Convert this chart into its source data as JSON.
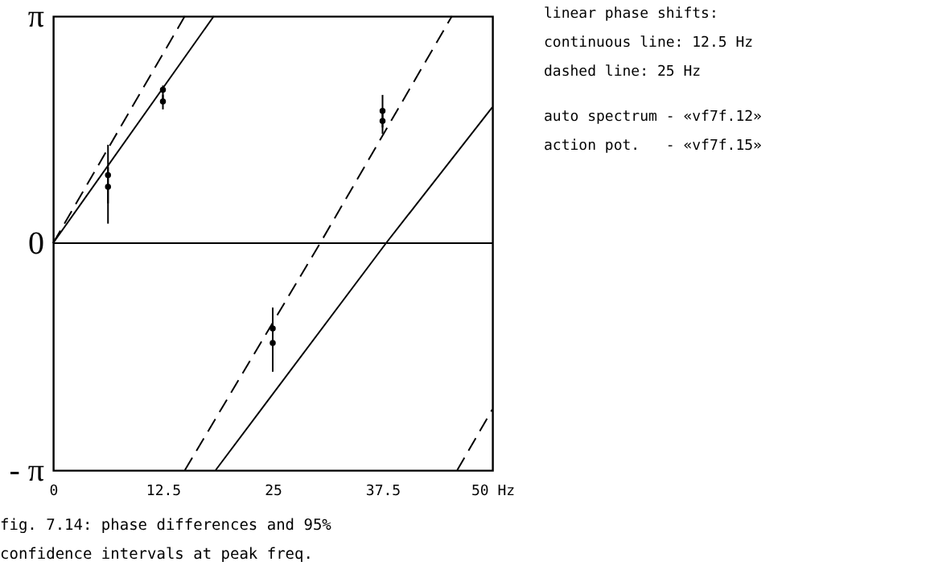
{
  "chart_data": {
    "type": "line",
    "title": "fig. 7.14: phase differences and 95% confidence intervals at peak freq.",
    "annotations": [
      "linear phase shifts:",
      "continuous line: 12.5 Hz",
      "dashed line: 25 Hz",
      "auto spectrum - «vf7f.12»",
      "action pot.   - «vf7f.15»"
    ],
    "xlim": [
      0,
      50
    ],
    "xticks": [
      0,
      12.5,
      25,
      37.5,
      {
        "value": 50,
        "label": "50 Hz"
      }
    ],
    "ylim": [
      -3.14,
      3.14
    ],
    "yticks": [
      {
        "value": -3.14,
        "label": "- π"
      },
      {
        "value": 0,
        "label": "0"
      },
      {
        "value": 3.14,
        "label": "π"
      }
    ],
    "grid": false,
    "ref_lines": [
      {
        "axis": "y",
        "value": 0,
        "color": "#000000"
      }
    ],
    "series": [
      {
        "color": "#000000",
        "line_style": "solid",
        "x": [
          0,
          18.3
        ],
        "values": [
          0,
          3.14
        ]
      },
      {
        "color": "#000000",
        "line_style": "solid",
        "x": [
          18.5,
          37.9,
          50
        ],
        "values": [
          -3.14,
          0,
          1.88
        ]
      },
      {
        "color": "#000000",
        "line_style": "dashed",
        "x": [
          0,
          15.0
        ],
        "values": [
          0,
          3.14
        ]
      },
      {
        "color": "#000000",
        "line_style": "dashed",
        "x": [
          15.0,
          30.4,
          45.4
        ],
        "values": [
          -3.14,
          0,
          3.14
        ]
      },
      {
        "color": "#000000",
        "line_style": "dashed",
        "x": [
          46.0,
          50
        ],
        "values": [
          -3.14,
          -2.3
        ]
      },
      {
        "type": "scatter",
        "color": "#000000",
        "marker": "circle",
        "x": [
          6.25,
          12.5,
          25,
          37.5
        ],
        "values": [
          0.94,
          2.12,
          -1.18,
          1.83
        ],
        "errors": [
          [
            0.55,
            1.36
          ],
          [
            1.98,
            2.18
          ],
          [
            -1.5,
            -0.89
          ],
          [
            1.6,
            2.05
          ]
        ]
      },
      {
        "type": "scatter",
        "color": "#000000",
        "marker": "circle",
        "x": [
          6.25,
          12.5,
          25,
          37.5
        ],
        "values": [
          0.78,
          1.96,
          -1.38,
          1.69
        ],
        "errors": [
          [
            0.27,
            1.05
          ],
          [
            1.85,
            2.05
          ],
          [
            -1.78,
            -1.1
          ],
          [
            1.51,
            1.8
          ]
        ]
      }
    ]
  }
}
